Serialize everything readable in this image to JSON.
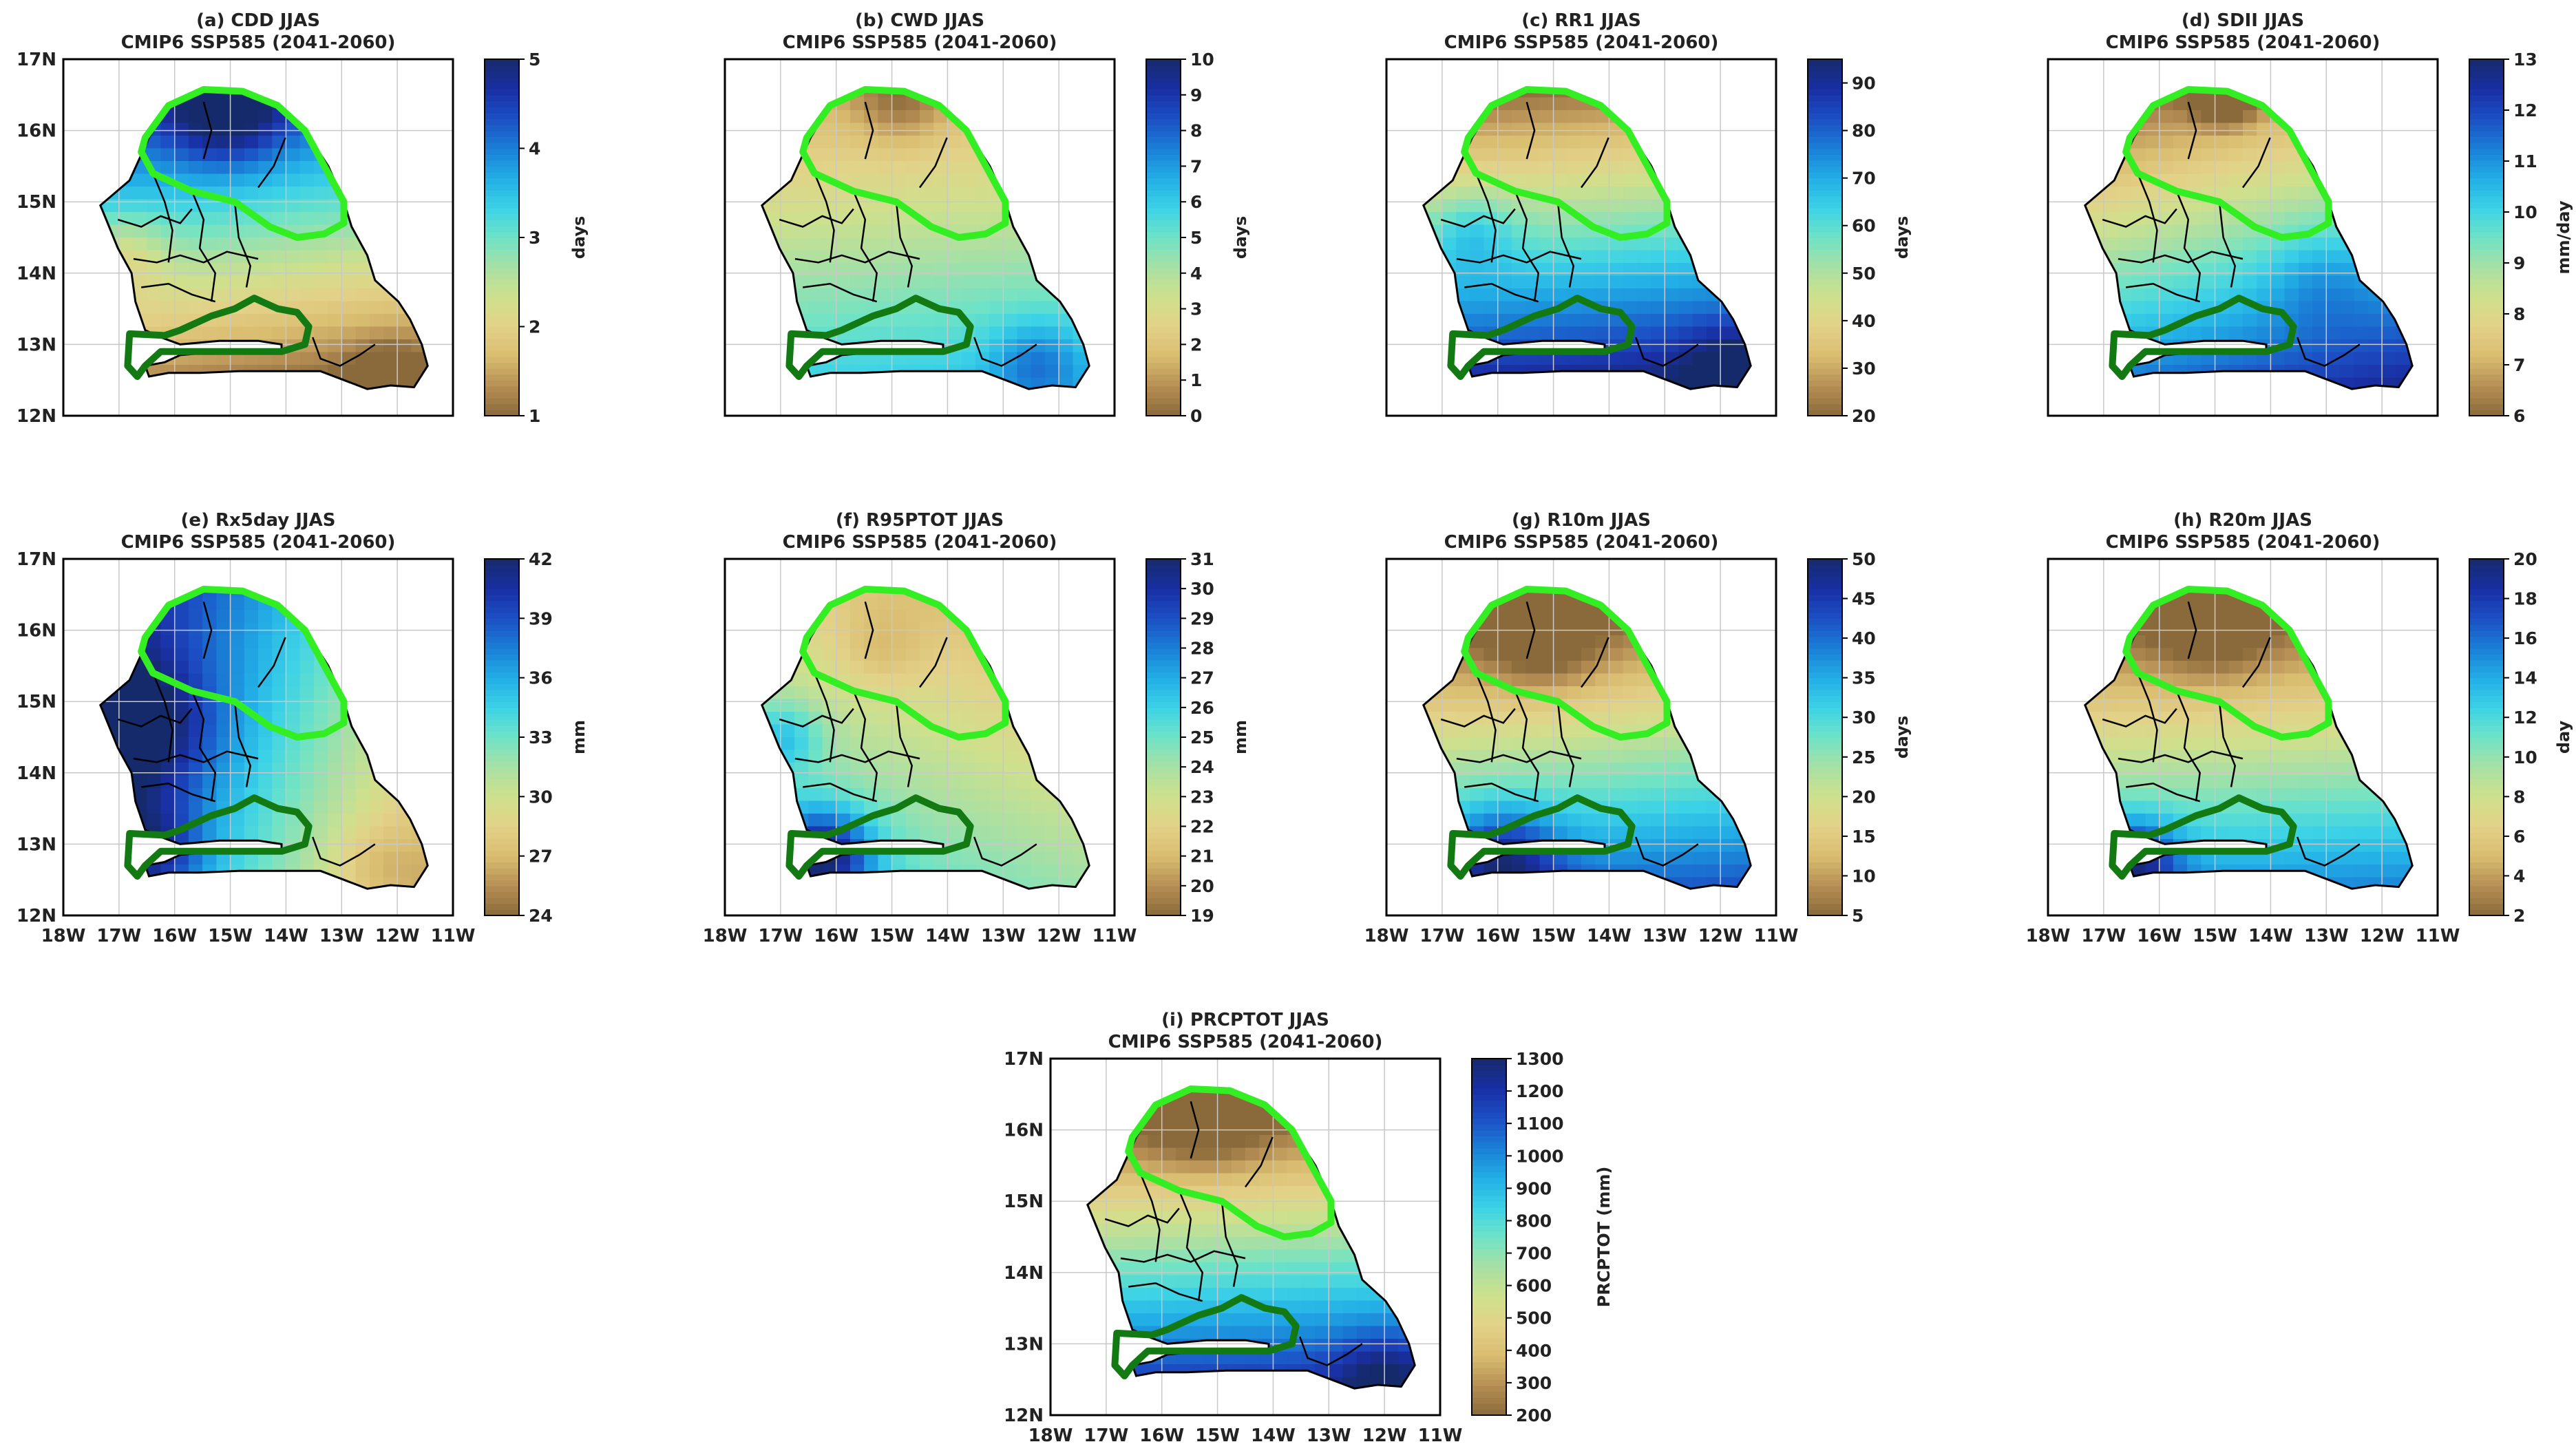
{
  "figure": {
    "scenario": "CMIP6 SSP585 (2041-2060)",
    "lon_ticks": [
      "18W",
      "17W",
      "16W",
      "15W",
      "14W",
      "13W",
      "12W",
      "11W"
    ],
    "lat_ticks": [
      "12N",
      "13N",
      "14N",
      "15N",
      "16N",
      "17N"
    ]
  },
  "chart_data": [
    {
      "id": "a",
      "type": "heatmap",
      "title": "(a) CDD JJAS",
      "subtitle": "CMIP6 SSP585 (2041-2060)",
      "colorbar": {
        "min": 1,
        "max": 5,
        "ticks": [
          1,
          2,
          3,
          4,
          5
        ],
        "label": "days"
      },
      "show_x_ticks": false,
      "show_y_ticks": true
    },
    {
      "id": "b",
      "type": "heatmap",
      "title": "(b) CWD JJAS",
      "subtitle": "CMIP6 SSP585 (2041-2060)",
      "colorbar": {
        "min": 0,
        "max": 10,
        "ticks": [
          0,
          1,
          2,
          3,
          4,
          5,
          6,
          7,
          8,
          9,
          10
        ],
        "label": "days"
      },
      "show_x_ticks": false,
      "show_y_ticks": false
    },
    {
      "id": "c",
      "type": "heatmap",
      "title": "(c) RR1 JJAS",
      "subtitle": "CMIP6 SSP585 (2041-2060)",
      "colorbar": {
        "min": 20,
        "max": 95,
        "ticks": [
          20,
          30,
          40,
          50,
          60,
          70,
          80,
          90
        ],
        "label": "days"
      },
      "show_x_ticks": false,
      "show_y_ticks": false
    },
    {
      "id": "d",
      "type": "heatmap",
      "title": "(d) SDII JJAS",
      "subtitle": "CMIP6 SSP585 (2041-2060)",
      "colorbar": {
        "min": 6,
        "max": 13,
        "ticks": [
          6,
          7,
          8,
          9,
          10,
          11,
          12,
          13
        ],
        "label": "mm/day"
      },
      "show_x_ticks": false,
      "show_y_ticks": false
    },
    {
      "id": "e",
      "type": "heatmap",
      "title": "(e) Rx5day JJAS",
      "subtitle": "CMIP6 SSP585 (2041-2060)",
      "colorbar": {
        "min": 24,
        "max": 42,
        "ticks": [
          24,
          27,
          30,
          33,
          36,
          39,
          42
        ],
        "label": "mm"
      },
      "show_x_ticks": true,
      "show_y_ticks": true
    },
    {
      "id": "f",
      "type": "heatmap",
      "title": "(f) R95PTOT JJAS",
      "subtitle": "CMIP6 SSP585 (2041-2060)",
      "colorbar": {
        "min": 19,
        "max": 31,
        "ticks": [
          19,
          20,
          21,
          22,
          23,
          24,
          25,
          26,
          27,
          28,
          29,
          30,
          31
        ],
        "label": "mm"
      },
      "show_x_ticks": true,
      "show_y_ticks": false
    },
    {
      "id": "g",
      "type": "heatmap",
      "title": "(g) R10m JJAS",
      "subtitle": "CMIP6 SSP585 (2041-2060)",
      "colorbar": {
        "min": 5,
        "max": 50,
        "ticks": [
          5,
          10,
          15,
          20,
          25,
          30,
          35,
          40,
          45,
          50
        ],
        "label": "days"
      },
      "show_x_ticks": true,
      "show_y_ticks": false
    },
    {
      "id": "h",
      "type": "heatmap",
      "title": "(h) R20m JJAS",
      "subtitle": "CMIP6 SSP585 (2041-2060)",
      "colorbar": {
        "min": 2,
        "max": 20,
        "ticks": [
          2,
          4,
          6,
          8,
          10,
          12,
          14,
          16,
          18,
          20
        ],
        "label": "day"
      },
      "show_x_ticks": true,
      "show_y_ticks": false
    },
    {
      "id": "i",
      "type": "heatmap",
      "title": "(i) PRCPTOT JJAS",
      "subtitle": "CMIP6 SSP585 (2041-2060)",
      "colorbar": {
        "min": 200,
        "max": 1300,
        "ticks": [
          200,
          300,
          400,
          500,
          600,
          700,
          800,
          900,
          1000,
          1100,
          1200,
          1300
        ],
        "label": "PRCPTOT (mm)"
      },
      "show_x_ticks": true,
      "show_y_ticks": true
    }
  ],
  "colors": {
    "colormap": [
      "#8a6a3a",
      "#b58e54",
      "#d9bd70",
      "#e3d188",
      "#cfe08c",
      "#a8e0a4",
      "#6fe3c6",
      "#3cd2e6",
      "#22aee6",
      "#1a7fd6",
      "#1c4fc4",
      "#1a2fa4",
      "#152a6b"
    ],
    "outline": "#000000",
    "north_region": "#33ee22",
    "south_region": "#137a13",
    "grid": "#c8c8c8"
  }
}
